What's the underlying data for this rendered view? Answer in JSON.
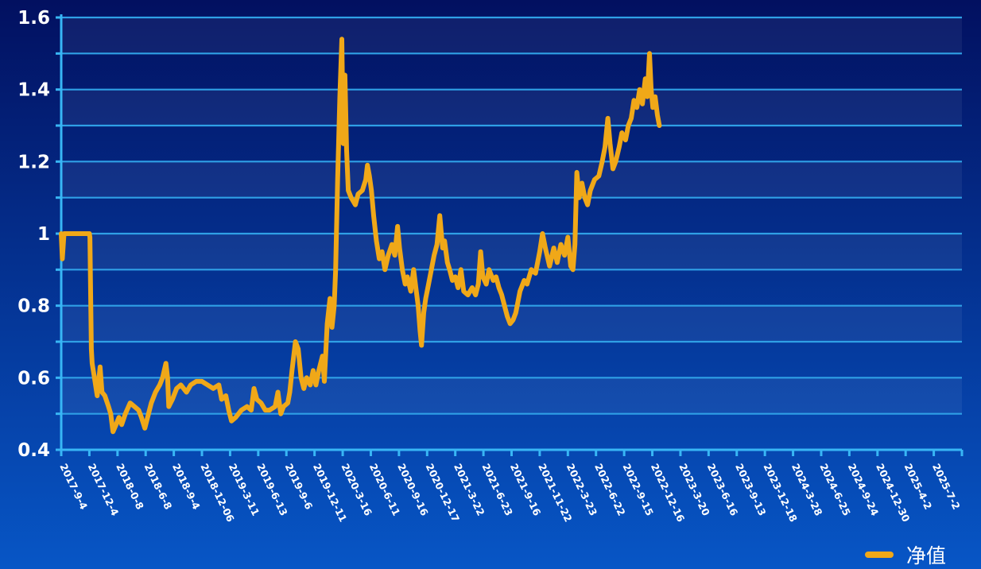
{
  "chart_data": {
    "type": "line",
    "title": "",
    "xlabel": "",
    "ylabel": "",
    "ylim": [
      0.4,
      1.6
    ],
    "yticks": [
      1.6,
      1.4,
      1.2,
      1,
      0.8,
      0.6,
      0.4
    ],
    "ytick_labels": [
      "1.6",
      "1.4",
      "1.2",
      "1",
      "0.8",
      "0.6",
      "0.4"
    ],
    "xtick_labels": [
      "2017-9-4",
      "2017-12-4",
      "2018-0-8",
      "2018-6-8",
      "2018-9-4",
      "2018-12-06",
      "2019-3-11",
      "2019-6-13",
      "2019-9-6",
      "2019-12-11",
      "2020-3-16",
      "2020-6-11",
      "2020-9-16",
      "2020-12-17",
      "2021-3-22",
      "2021-6-23",
      "2021-9-16",
      "2021-11-22",
      "2022-3-23",
      "2022-6-22",
      "2022-9-15",
      "2022-12-16",
      "2023-3-20",
      "2023-6-16",
      "2023-9-13",
      "2023-12-18",
      "2024-3-28",
      "2024-6-25",
      "2024-9-24",
      "2024-12-30",
      "2025-4-2",
      "2025-7-2"
    ],
    "grid": true,
    "legend_position": "bottom-right",
    "colors": {
      "line": "#f0a818",
      "grid": "#2fa0e6",
      "axis": "#38b6f5",
      "background_top": "#021060",
      "background_bottom": "#0756c6"
    },
    "series": [
      {
        "name": "净值",
        "points": [
          [
            0.0,
            1.0
          ],
          [
            0.04,
            0.93
          ],
          [
            0.1,
            1.0
          ],
          [
            0.5,
            1.0
          ],
          [
            1.0,
            1.0
          ],
          [
            1.02,
            0.99
          ],
          [
            1.07,
            0.68
          ],
          [
            1.1,
            0.64
          ],
          [
            1.18,
            0.6
          ],
          [
            1.28,
            0.55
          ],
          [
            1.38,
            0.63
          ],
          [
            1.45,
            0.56
          ],
          [
            1.55,
            0.55
          ],
          [
            1.68,
            0.52
          ],
          [
            1.76,
            0.5
          ],
          [
            1.84,
            0.45
          ],
          [
            1.95,
            0.47
          ],
          [
            2.05,
            0.49
          ],
          [
            2.15,
            0.47
          ],
          [
            2.28,
            0.5
          ],
          [
            2.45,
            0.53
          ],
          [
            2.6,
            0.52
          ],
          [
            2.75,
            0.51
          ],
          [
            2.85,
            0.49
          ],
          [
            2.97,
            0.46
          ],
          [
            3.1,
            0.5
          ],
          [
            3.2,
            0.53
          ],
          [
            3.35,
            0.56
          ],
          [
            3.5,
            0.58
          ],
          [
            3.6,
            0.6
          ],
          [
            3.72,
            0.64
          ],
          [
            3.78,
            0.6
          ],
          [
            3.82,
            0.52
          ],
          [
            3.95,
            0.54
          ],
          [
            4.1,
            0.57
          ],
          [
            4.25,
            0.58
          ],
          [
            4.45,
            0.56
          ],
          [
            4.6,
            0.58
          ],
          [
            4.8,
            0.59
          ],
          [
            5.0,
            0.59
          ],
          [
            5.2,
            0.58
          ],
          [
            5.4,
            0.57
          ],
          [
            5.6,
            0.58
          ],
          [
            5.7,
            0.54
          ],
          [
            5.85,
            0.55
          ],
          [
            5.95,
            0.51
          ],
          [
            6.05,
            0.48
          ],
          [
            6.2,
            0.49
          ],
          [
            6.4,
            0.51
          ],
          [
            6.6,
            0.52
          ],
          [
            6.75,
            0.51
          ],
          [
            6.85,
            0.57
          ],
          [
            6.95,
            0.54
          ],
          [
            7.1,
            0.53
          ],
          [
            7.25,
            0.51
          ],
          [
            7.4,
            0.51
          ],
          [
            7.6,
            0.52
          ],
          [
            7.7,
            0.56
          ],
          [
            7.8,
            0.5
          ],
          [
            7.9,
            0.52
          ],
          [
            8.05,
            0.53
          ],
          [
            8.12,
            0.56
          ],
          [
            8.2,
            0.62
          ],
          [
            8.32,
            0.7
          ],
          [
            8.42,
            0.68
          ],
          [
            8.52,
            0.6
          ],
          [
            8.62,
            0.57
          ],
          [
            8.72,
            0.6
          ],
          [
            8.85,
            0.58
          ],
          [
            8.95,
            0.62
          ],
          [
            9.05,
            0.58
          ],
          [
            9.15,
            0.62
          ],
          [
            9.28,
            0.66
          ],
          [
            9.35,
            0.59
          ],
          [
            9.45,
            0.75
          ],
          [
            9.55,
            0.82
          ],
          [
            9.62,
            0.74
          ],
          [
            9.7,
            0.8
          ],
          [
            9.75,
            0.9
          ],
          [
            9.82,
            1.15
          ],
          [
            9.9,
            1.38
          ],
          [
            9.97,
            1.54
          ],
          [
            10.02,
            1.25
          ],
          [
            10.08,
            1.44
          ],
          [
            10.14,
            1.23
          ],
          [
            10.2,
            1.12
          ],
          [
            10.3,
            1.1
          ],
          [
            10.45,
            1.08
          ],
          [
            10.55,
            1.11
          ],
          [
            10.7,
            1.12
          ],
          [
            10.82,
            1.15
          ],
          [
            10.88,
            1.19
          ],
          [
            10.95,
            1.16
          ],
          [
            11.02,
            1.12
          ],
          [
            11.1,
            1.05
          ],
          [
            11.2,
            0.98
          ],
          [
            11.3,
            0.93
          ],
          [
            11.4,
            0.95
          ],
          [
            11.5,
            0.9
          ],
          [
            11.62,
            0.94
          ],
          [
            11.75,
            0.97
          ],
          [
            11.85,
            0.94
          ],
          [
            11.95,
            1.02
          ],
          [
            12.02,
            0.96
          ],
          [
            12.12,
            0.9
          ],
          [
            12.22,
            0.86
          ],
          [
            12.3,
            0.88
          ],
          [
            12.42,
            0.84
          ],
          [
            12.52,
            0.9
          ],
          [
            12.6,
            0.85
          ],
          [
            12.68,
            0.8
          ],
          [
            12.75,
            0.73
          ],
          [
            12.8,
            0.69
          ],
          [
            12.88,
            0.78
          ],
          [
            12.95,
            0.82
          ],
          [
            13.05,
            0.86
          ],
          [
            13.15,
            0.9
          ],
          [
            13.25,
            0.94
          ],
          [
            13.35,
            0.97
          ],
          [
            13.45,
            1.05
          ],
          [
            13.55,
            0.96
          ],
          [
            13.62,
            0.98
          ],
          [
            13.72,
            0.92
          ],
          [
            13.8,
            0.9
          ],
          [
            13.9,
            0.87
          ],
          [
            14.0,
            0.88
          ],
          [
            14.1,
            0.85
          ],
          [
            14.2,
            0.9
          ],
          [
            14.3,
            0.84
          ],
          [
            14.45,
            0.83
          ],
          [
            14.6,
            0.85
          ],
          [
            14.72,
            0.83
          ],
          [
            14.82,
            0.86
          ],
          [
            14.9,
            0.95
          ],
          [
            14.98,
            0.88
          ],
          [
            15.1,
            0.86
          ],
          [
            15.2,
            0.9
          ],
          [
            15.35,
            0.87
          ],
          [
            15.45,
            0.88
          ],
          [
            15.55,
            0.85
          ],
          [
            15.65,
            0.83
          ],
          [
            15.75,
            0.8
          ],
          [
            15.85,
            0.77
          ],
          [
            15.95,
            0.75
          ],
          [
            16.05,
            0.76
          ],
          [
            16.15,
            0.78
          ],
          [
            16.3,
            0.84
          ],
          [
            16.45,
            0.87
          ],
          [
            16.55,
            0.86
          ],
          [
            16.7,
            0.9
          ],
          [
            16.85,
            0.89
          ],
          [
            17.0,
            0.95
          ],
          [
            17.1,
            1.0
          ],
          [
            17.2,
            0.96
          ],
          [
            17.35,
            0.91
          ],
          [
            17.5,
            0.96
          ],
          [
            17.62,
            0.92
          ],
          [
            17.75,
            0.97
          ],
          [
            17.88,
            0.94
          ],
          [
            18.0,
            0.99
          ],
          [
            18.1,
            0.91
          ],
          [
            18.18,
            0.9
          ],
          [
            18.25,
            0.97
          ],
          [
            18.32,
            1.17
          ],
          [
            18.4,
            1.1
          ],
          [
            18.5,
            1.14
          ],
          [
            18.6,
            1.1
          ],
          [
            18.7,
            1.08
          ],
          [
            18.8,
            1.12
          ],
          [
            18.95,
            1.15
          ],
          [
            19.1,
            1.16
          ],
          [
            19.22,
            1.2
          ],
          [
            19.32,
            1.24
          ],
          [
            19.42,
            1.32
          ],
          [
            19.5,
            1.25
          ],
          [
            19.6,
            1.18
          ],
          [
            19.7,
            1.2
          ],
          [
            19.82,
            1.24
          ],
          [
            19.92,
            1.28
          ],
          [
            20.05,
            1.26
          ],
          [
            20.15,
            1.3
          ],
          [
            20.25,
            1.32
          ],
          [
            20.35,
            1.37
          ],
          [
            20.45,
            1.35
          ],
          [
            20.55,
            1.4
          ],
          [
            20.65,
            1.36
          ],
          [
            20.75,
            1.43
          ],
          [
            20.82,
            1.38
          ],
          [
            20.9,
            1.5
          ],
          [
            20.96,
            1.4
          ],
          [
            21.02,
            1.35
          ],
          [
            21.1,
            1.38
          ],
          [
            21.18,
            1.33
          ],
          [
            21.25,
            1.3
          ]
        ]
      }
    ]
  }
}
